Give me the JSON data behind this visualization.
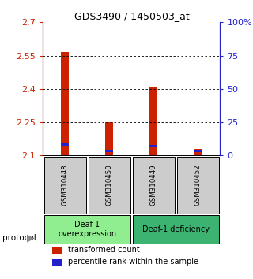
{
  "title": "GDS3490 / 1450503_at",
  "samples": [
    "GSM310448",
    "GSM310450",
    "GSM310449",
    "GSM310452"
  ],
  "red_values": [
    2.565,
    2.25,
    2.405,
    2.13
  ],
  "blue_values": [
    2.145,
    2.115,
    2.135,
    2.115
  ],
  "ymin": 2.1,
  "ymax": 2.7,
  "yticks_left": [
    2.1,
    2.25,
    2.4,
    2.55,
    2.7
  ],
  "yticks_right_vals": [
    0,
    25,
    50,
    75,
    100
  ],
  "yticks_right_labels": [
    "0",
    "25",
    "50",
    "75",
    "100%"
  ],
  "groups": [
    {
      "label": "Deaf-1\noverexpression",
      "start": 0,
      "end": 2,
      "color": "#90ee90"
    },
    {
      "label": "Deaf-1 deficiency",
      "start": 2,
      "end": 4,
      "color": "#3cb371"
    }
  ],
  "bar_width": 0.18,
  "red_color": "#cc2200",
  "blue_color": "#2222cc",
  "axis_color_left": "#cc2200",
  "axis_color_right": "#2222cc",
  "sample_box_color": "#cccccc",
  "protocol_label": "protocol",
  "legend_red": "transformed count",
  "legend_blue": "percentile rank within the sample"
}
